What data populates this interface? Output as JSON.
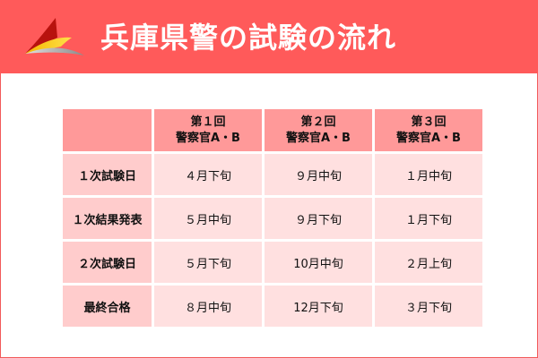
{
  "header": {
    "title": "兵庫県警の試験の流れ",
    "logo": "tricolor-sail-logo",
    "background": "#ff5a5a"
  },
  "table": {
    "columns": [
      {
        "line1": "",
        "line2": ""
      },
      {
        "line1": "第１回",
        "line2": "警察官A・B"
      },
      {
        "line1": "第２回",
        "line2": "警察官A・B"
      },
      {
        "line1": "第３回",
        "line2": "警察官A・B"
      }
    ],
    "rows": [
      {
        "label": "１次試験日",
        "values": [
          "４月下旬",
          "９月中旬",
          "１月中旬"
        ]
      },
      {
        "label": "１次結果発表",
        "values": [
          "５月中旬",
          "９月下旬",
          "１月下旬"
        ]
      },
      {
        "label": "２次試験日",
        "values": [
          "５月下旬",
          "10月中旬",
          "２月上旬"
        ]
      },
      {
        "label": "最終合格",
        "values": [
          "８月中旬",
          "12月下旬",
          "３月下旬"
        ]
      }
    ],
    "colors": {
      "header": "#ff9999",
      "row_header": "#ffcccc",
      "cell": "#ffe0e0"
    }
  }
}
